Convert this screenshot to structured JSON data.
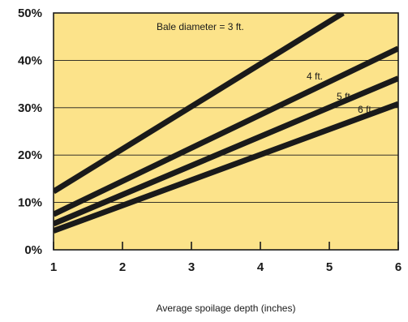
{
  "chart_data": {
    "type": "line",
    "xlabel": "Average spoilage depth (inches)",
    "ylabel": "",
    "xlim": [
      1,
      6
    ],
    "ylim": [
      0,
      50
    ],
    "x_ticks": [
      1,
      2,
      3,
      4,
      5,
      6
    ],
    "x_tick_labels": [
      "1",
      "2",
      "3",
      "4",
      "5",
      "6"
    ],
    "y_ticks": [
      0,
      10,
      20,
      30,
      40,
      50
    ],
    "y_tick_labels": [
      "0%",
      "10%",
      "20%",
      "30%",
      "40%",
      "50%"
    ],
    "grid": "horizontal",
    "colors": {
      "plot_background": "#fce38a",
      "line": "#1a1a1a",
      "grid": "#1a1a1a"
    },
    "series": [
      {
        "label": "Bale diameter = 3 ft.",
        "x": [
          1,
          5.2
        ],
        "y": [
          12.3,
          50
        ]
      },
      {
        "label": "4 ft.",
        "x": [
          1,
          6
        ],
        "y": [
          7.5,
          42.5
        ]
      },
      {
        "label": "5 ft.",
        "x": [
          1,
          6
        ],
        "y": [
          5.5,
          36.2
        ]
      },
      {
        "label": "6 ft.",
        "x": [
          1,
          6
        ],
        "y": [
          4.0,
          30.8
        ]
      }
    ]
  }
}
